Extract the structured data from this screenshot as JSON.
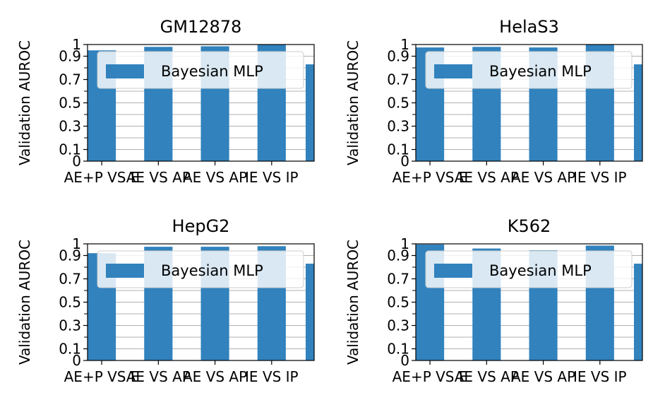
{
  "chart_data": [
    {
      "type": "bar",
      "title": "GM12878",
      "ylabel": "Validation AUROC",
      "categories": [
        "AE+P VS E",
        "AE VS AP",
        "AE VS AP",
        "IE VS IP"
      ],
      "series": [
        {
          "name": "Bayesian MLP",
          "values": [
            0.95,
            0.98,
            0.985,
            1.0
          ],
          "color": "#3182bd"
        }
      ],
      "ylim": [
        0,
        1
      ],
      "yticks": [
        "0",
        "0.1",
        "0.3",
        "0.5",
        "0.7",
        "0.9",
        "1"
      ],
      "ytick_values": [
        0,
        0.1,
        0.3,
        0.5,
        0.7,
        0.9,
        1
      ],
      "grid": true,
      "legend": "upper-center"
    },
    {
      "type": "bar",
      "title": "HelaS3",
      "ylabel": "Validation AUROC",
      "categories": [
        "AE+P VS E",
        "AE VS AP",
        "AE VS AP",
        "IE VS IP"
      ],
      "series": [
        {
          "name": "Bayesian MLP",
          "values": [
            0.975,
            0.98,
            0.975,
            1.0
          ],
          "color": "#3182bd"
        }
      ],
      "ylim": [
        0,
        1
      ],
      "yticks": [
        "0",
        "0.1",
        "0.3",
        "0.5",
        "0.7",
        "0.9",
        "1"
      ],
      "ytick_values": [
        0,
        0.1,
        0.3,
        0.5,
        0.7,
        0.9,
        1
      ],
      "grid": true,
      "legend": "upper-center"
    },
    {
      "type": "bar",
      "title": "HepG2",
      "ylabel": "Validation AUROC",
      "categories": [
        "AE+P VS E",
        "AE VS AP",
        "AE VS AP",
        "IE VS IP"
      ],
      "series": [
        {
          "name": "Bayesian MLP",
          "values": [
            0.92,
            0.975,
            0.975,
            0.98
          ],
          "color": "#3182bd"
        }
      ],
      "ylim": [
        0,
        1
      ],
      "yticks": [
        "0",
        "0.1",
        "0.3",
        "0.5",
        "0.7",
        "0.9",
        "1"
      ],
      "ytick_values": [
        0,
        0.1,
        0.3,
        0.5,
        0.7,
        0.9,
        1
      ],
      "grid": true,
      "legend": "upper-center"
    },
    {
      "type": "bar",
      "title": "K562",
      "ylabel": "Validation AUROC",
      "categories": [
        "AE+P VS E",
        "AE VS AP",
        "AE VS AP",
        "IE VS IP"
      ],
      "series": [
        {
          "name": "Bayesian MLP",
          "values": [
            0.995,
            0.96,
            0.945,
            0.985
          ],
          "color": "#3182bd"
        }
      ],
      "ylim": [
        0,
        1
      ],
      "yticks": [
        "0",
        "0.1",
        "0.3",
        "0.5",
        "0.7",
        "0.9",
        "1"
      ],
      "ytick_values": [
        0,
        0.1,
        0.3,
        0.5,
        0.7,
        0.9,
        1
      ],
      "grid": true,
      "legend": "upper-center"
    }
  ]
}
